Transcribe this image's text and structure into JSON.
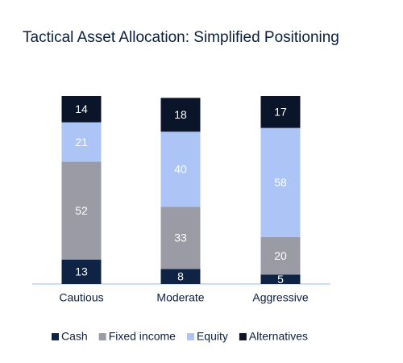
{
  "chart_data": {
    "type": "stacked_bar",
    "title": "Tactical Asset Allocation: Simplified Positioning",
    "categories": [
      "Cautious",
      "Moderate",
      "Aggressive"
    ],
    "series": [
      {
        "name": "Cash",
        "color": "#0f2445",
        "values": [
          13,
          8,
          5
        ]
      },
      {
        "name": "Fixed income",
        "color": "#9a9ba5",
        "values": [
          52,
          33,
          20
        ]
      },
      {
        "name": "Equity",
        "color": "#adc4f6",
        "values": [
          21,
          40,
          58
        ]
      },
      {
        "name": "Alternatives",
        "color": "#0a1529",
        "values": [
          14,
          18,
          17
        ]
      }
    ]
  }
}
